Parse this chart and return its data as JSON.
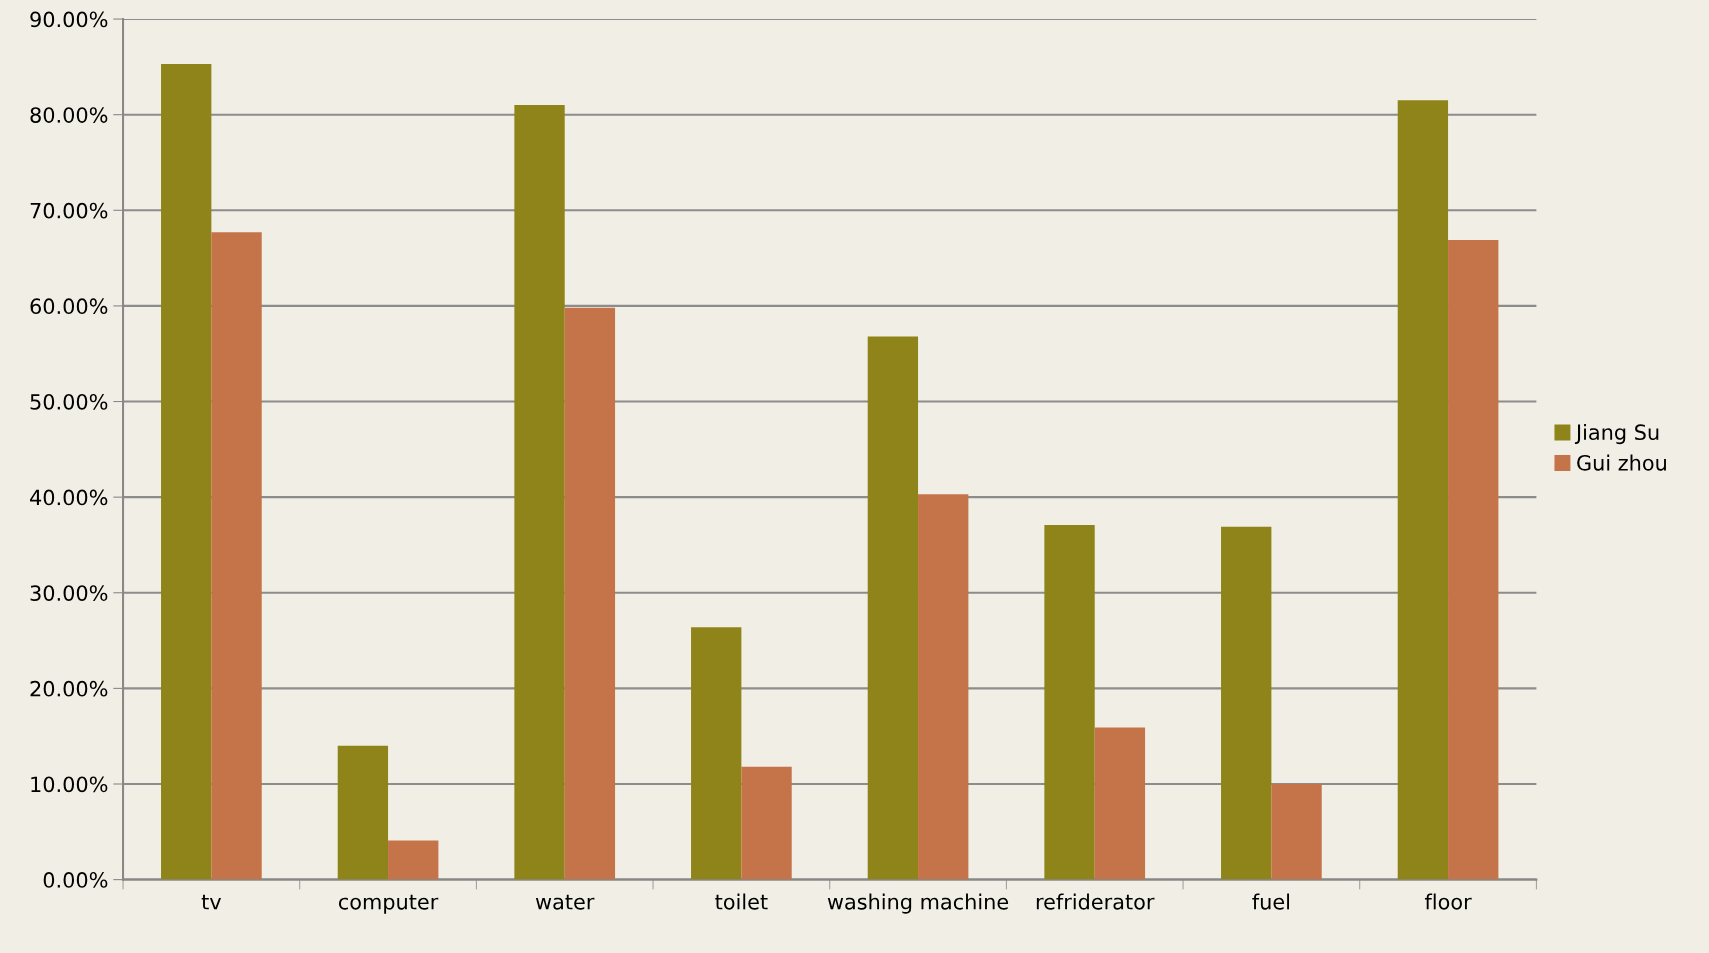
{
  "chart_data": {
    "type": "bar",
    "categories": [
      "tv",
      "computer",
      "water",
      "toilet",
      "washing machine",
      "refriderator",
      "fuel",
      "floor"
    ],
    "series": [
      {
        "name": "Jiang Su",
        "color": "#8e8419",
        "values": [
          85.3,
          14.0,
          81.0,
          26.4,
          56.8,
          37.1,
          36.9,
          81.5
        ]
      },
      {
        "name": "Gui zhou",
        "color": "#c5744a",
        "values": [
          67.7,
          4.1,
          59.8,
          11.8,
          40.3,
          15.9,
          10.0,
          66.9
        ]
      }
    ],
    "ylim": [
      0,
      90
    ],
    "yticks": [
      {
        "value": 0,
        "label": "0.00%"
      },
      {
        "value": 10,
        "label": "10.00%"
      },
      {
        "value": 20,
        "label": "20.00%"
      },
      {
        "value": 30,
        "label": "30.00%"
      },
      {
        "value": 40,
        "label": "40.00%"
      },
      {
        "value": 50,
        "label": "50.00%"
      },
      {
        "value": 60,
        "label": "60.00%"
      },
      {
        "value": 70,
        "label": "70.00%"
      },
      {
        "value": 80,
        "label": "80.00%"
      },
      {
        "value": 90,
        "label": "90.00%"
      }
    ],
    "grid": "y",
    "legend": "right"
  }
}
